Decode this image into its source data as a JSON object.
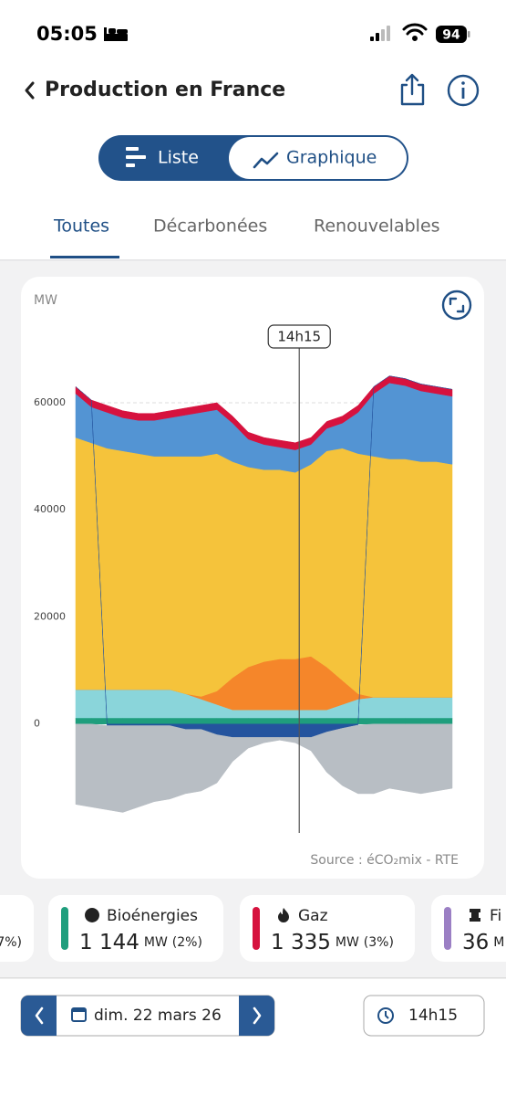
{
  "status_bar": {
    "time": "05:05",
    "battery": "94"
  },
  "header": {
    "title": "Production en France"
  },
  "view_toggle": {
    "options": [
      "Liste",
      "Graphique"
    ],
    "selected": 1
  },
  "tabs": {
    "items": [
      "Toutes",
      "Décarbonées",
      "Renouvelables"
    ],
    "selected": 0
  },
  "chart_data": {
    "type": "area",
    "y_label": "MW",
    "cursor_label": "14h15",
    "source": "Source : éCO₂mix - RTE",
    "x": [
      0,
      1,
      2,
      3,
      4,
      5,
      6,
      7,
      8,
      9,
      10,
      11,
      12,
      13,
      14,
      15,
      16,
      17,
      18,
      19,
      20,
      21,
      22,
      23,
      24
    ],
    "xlim": [
      0,
      24
    ],
    "ylim": [
      -20000,
      75000
    ],
    "yticks": [
      0,
      20000,
      40000,
      60000
    ],
    "grid": true,
    "stacked": true,
    "series": [
      {
        "name": "Bioénergies",
        "color": "#1f9e7d",
        "values": [
          1150,
          1150,
          1150,
          1150,
          1150,
          1150,
          1150,
          1150,
          1150,
          1150,
          1150,
          1150,
          1150,
          1150,
          1144,
          1150,
          1150,
          1150,
          1150,
          1150,
          1150,
          1150,
          1150,
          1150,
          1150
        ]
      },
      {
        "color": "#8ad5da",
        "values": [
          5300,
          5300,
          5300,
          5300,
          5300,
          5300,
          5300,
          4500,
          3500,
          2500,
          1500,
          1500,
          1500,
          1500,
          1500,
          1500,
          1500,
          2500,
          3500,
          3850,
          3850,
          3850,
          3850,
          3850,
          3850
        ]
      },
      {
        "color": "#f5862a",
        "values": [
          0,
          0,
          0,
          0,
          0,
          0,
          0,
          0,
          500,
          2500,
          6000,
          8000,
          9000,
          9500,
          9500,
          10000,
          8000,
          4500,
          1000,
          0,
          0,
          0,
          0,
          0,
          0
        ]
      },
      {
        "color": "#f5c33b",
        "values": [
          47050,
          46050,
          45050,
          44550,
          44050,
          43550,
          43550,
          44350,
          44850,
          44350,
          40350,
          37350,
          35850,
          35350,
          34850,
          35850,
          40350,
          43350,
          44850,
          45000,
          44500,
          44500,
          44000,
          44000,
          43500
        ]
      },
      {
        "color": "#5394d3",
        "values": [
          8200,
          6700,
          6700,
          6200,
          6200,
          6700,
          7200,
          7700,
          8200,
          8200,
          7200,
          5200,
          4700,
          4200,
          4200,
          3700,
          4200,
          4700,
          7700,
          11700,
          14200,
          13700,
          13200,
          12700,
          12700
        ]
      },
      {
        "name": "Gaz",
        "color": "#d6123e",
        "values": [
          1300,
          1300,
          1300,
          1300,
          1300,
          1300,
          1300,
          1300,
          1300,
          1300,
          1300,
          1300,
          1300,
          1300,
          1335,
          1300,
          1300,
          1300,
          1300,
          1300,
          1300,
          1300,
          1300,
          1300,
          1300
        ]
      },
      {
        "color": "#24549e",
        "values": [
          0,
          0,
          -300,
          -300,
          -300,
          -300,
          -300,
          -1000,
          -1000,
          -2000,
          -2500,
          -2500,
          -2500,
          -2500,
          -2500,
          -2500,
          -1500,
          -800,
          -200,
          0,
          0,
          0,
          0,
          0,
          0
        ]
      },
      {
        "color": "#b8bec4",
        "values": [
          -15000,
          -15500,
          -15700,
          -16200,
          -15200,
          -14200,
          -13700,
          -12000,
          -11500,
          -9000,
          -4500,
          -2000,
          -1000,
          -500,
          -1000,
          -2500,
          -7500,
          -10700,
          -12800,
          -13000,
          -12000,
          -12500,
          -13000,
          -12500,
          -12000
        ]
      }
    ]
  },
  "cards": [
    {
      "share": "7%)",
      "color": "#f5c33b"
    },
    {
      "name": "Bioénergies",
      "value": "1 144",
      "unit": "MW",
      "share": "(2%)",
      "color": "#1f9e7d"
    },
    {
      "name": "Gaz",
      "value": "1 335",
      "unit": "MW",
      "share": "(3%)",
      "color": "#d6123e"
    },
    {
      "name": "Fi",
      "value": "36",
      "unit": "M",
      "color": "#9b7fc4"
    }
  ],
  "footer": {
    "date": "dim. 22 mars 26",
    "time": "14h15"
  }
}
